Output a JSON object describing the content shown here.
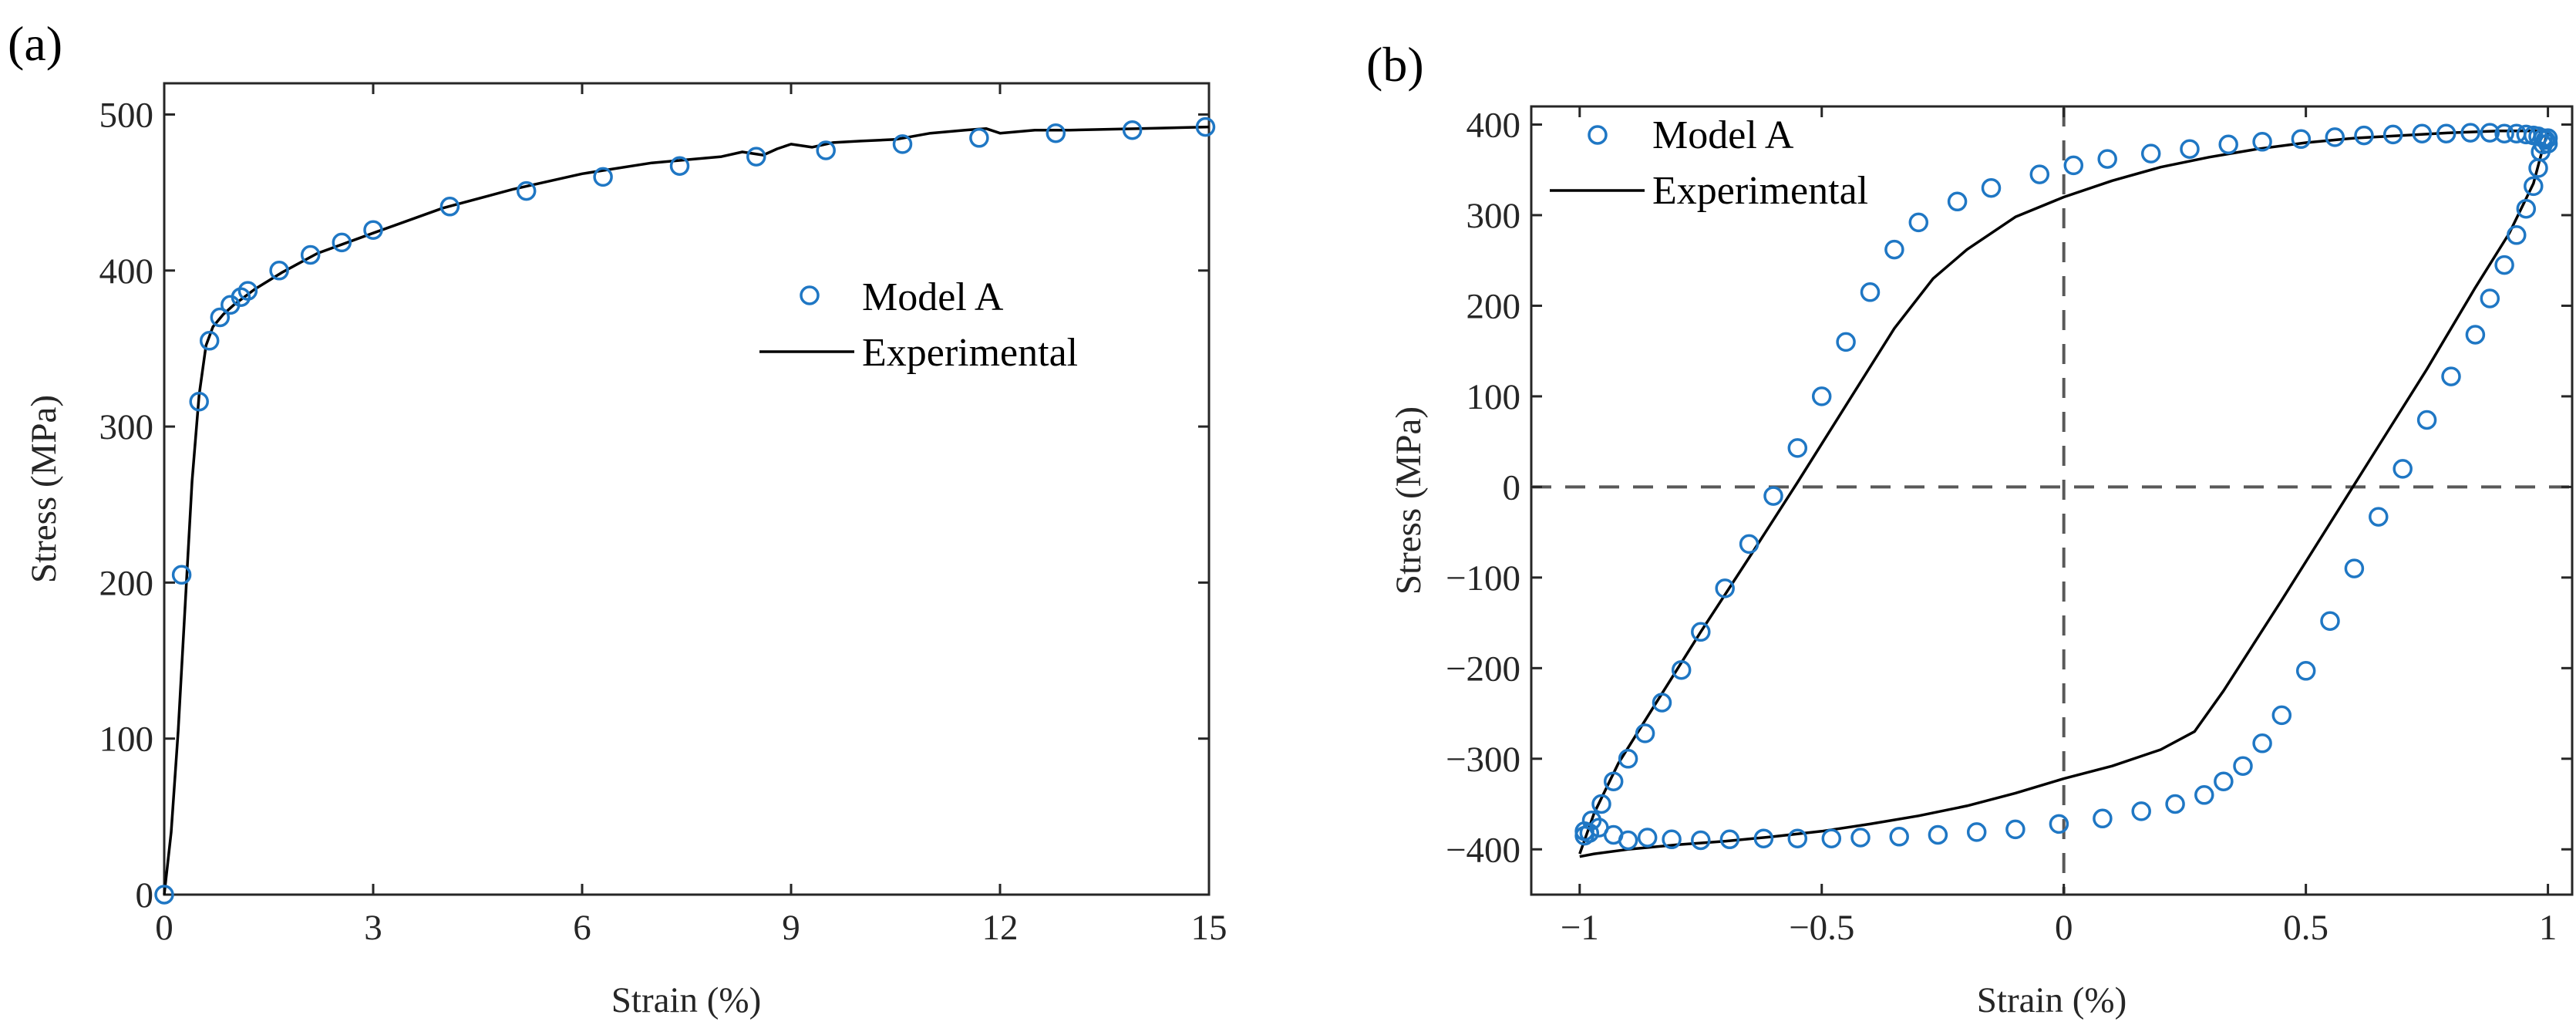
{
  "chart_data": [
    {
      "panel": "(a)",
      "type": "scatter",
      "xlabel": "Strain (%)",
      "ylabel": "Stress (MPa)",
      "xlim": [
        0,
        15
      ],
      "ylim": [
        0,
        520
      ],
      "xticks": [
        0,
        3,
        6,
        9,
        12,
        15
      ],
      "yticks": [
        0,
        100,
        200,
        300,
        400,
        500
      ],
      "legend_position": "center-right",
      "legend": [
        {
          "label": "Model A",
          "marker": "circle",
          "color": "#1f77c4"
        },
        {
          "label": "Experimental",
          "marker": "line",
          "color": "#000000"
        }
      ],
      "series": [
        {
          "name": "Model A",
          "style": "markers",
          "color": "#1f77c4",
          "x": [
            0,
            0.25,
            0.5,
            0.65,
            0.8,
            0.95,
            1.1,
            1.2,
            1.65,
            2.1,
            2.55,
            3.0,
            4.1,
            5.2,
            6.3,
            7.4,
            8.5,
            9.5,
            10.6,
            11.7,
            12.8,
            13.9,
            14.95
          ],
          "y": [
            0,
            205,
            316,
            355,
            370,
            378,
            383,
            387,
            400,
            410,
            418,
            426,
            441,
            451,
            460,
            467,
            473,
            477,
            481,
            485,
            488,
            490,
            492
          ]
        },
        {
          "name": "Experimental",
          "style": "line",
          "color": "#000000",
          "x": [
            0,
            0.1,
            0.2,
            0.3,
            0.4,
            0.5,
            0.6,
            0.7,
            0.85,
            1.0,
            1.3,
            1.7,
            2.2,
            3.0,
            4.0,
            5.0,
            6.0,
            7.0,
            8.0,
            8.3,
            8.6,
            8.8,
            9.0,
            9.3,
            9.6,
            10.0,
            10.5,
            11.0,
            11.5,
            11.8,
            12.0,
            12.5,
            13.0,
            14.0,
            15.0
          ],
          "y": [
            0,
            40,
            105,
            185,
            265,
            320,
            352,
            364,
            372,
            378,
            388,
            399,
            411,
            424,
            440,
            452,
            462,
            469,
            473,
            476,
            474,
            478,
            481,
            479,
            482,
            483,
            484,
            488,
            490,
            491,
            488,
            490,
            490,
            491,
            492
          ]
        }
      ]
    },
    {
      "panel": "(b)",
      "type": "scatter",
      "xlabel": "Strain (%)",
      "ylabel": "Stress (MPa)",
      "xlim": [
        -1.1,
        1.05
      ],
      "ylim": [
        -450,
        420
      ],
      "xticks": [
        -1,
        -0.5,
        0,
        0.5,
        1
      ],
      "xtick_labels": [
        "−1",
        "−0.5",
        "0",
        "0.5",
        "1"
      ],
      "yticks": [
        -400,
        -300,
        -200,
        -100,
        0,
        100,
        200,
        300,
        400
      ],
      "ytick_labels": [
        "−400",
        "−300",
        "−200",
        "−100",
        "0",
        "100",
        "200",
        "300",
        "400"
      ],
      "reference_lines": {
        "x": 0,
        "y": 0,
        "style": "dashed",
        "color": "#595959"
      },
      "legend_position": "top-left",
      "legend": [
        {
          "label": "Model A",
          "marker": "circle",
          "color": "#1f77c4"
        },
        {
          "label": "Experimental",
          "marker": "line",
          "color": "#000000"
        }
      ],
      "series": [
        {
          "name": "Model A",
          "style": "markers",
          "color": "#1f77c4",
          "x": [
            -0.99,
            -0.975,
            -0.955,
            -0.93,
            -0.9,
            -0.865,
            -0.83,
            -0.79,
            -0.75,
            -0.7,
            -0.65,
            -0.6,
            -0.55,
            -0.5,
            -0.45,
            -0.4,
            -0.35,
            -0.3,
            -0.22,
            -0.15,
            -0.05,
            0.02,
            0.09,
            0.18,
            0.26,
            0.34,
            0.41,
            0.49,
            0.56,
            0.62,
            0.68,
            0.74,
            0.79,
            0.84,
            0.88,
            0.91,
            0.935,
            0.955,
            0.97,
            0.98,
            0.99,
            0.995,
            1.0,
            1.0,
            0.99,
            0.985,
            0.98,
            0.97,
            0.955,
            0.935,
            0.91,
            0.88,
            0.85,
            0.8,
            0.75,
            0.7,
            0.65,
            0.6,
            0.55,
            0.5,
            0.45,
            0.41,
            0.37,
            0.33,
            0.29,
            0.23,
            0.16,
            0.08,
            -0.01,
            -0.1,
            -0.18,
            -0.26,
            -0.34,
            -0.42,
            -0.48,
            -0.55,
            -0.62,
            -0.69,
            -0.75,
            -0.81,
            -0.86,
            -0.9,
            -0.93,
            -0.96,
            -0.98,
            -0.99
          ],
          "y": [
            -380,
            -368,
            -350,
            -325,
            -300,
            -272,
            -238,
            -202,
            -160,
            -112,
            -63,
            -10,
            43,
            100,
            160,
            215,
            262,
            292,
            315,
            330,
            345,
            355,
            362,
            368,
            373,
            378,
            381,
            384,
            386,
            388,
            389,
            390,
            390,
            391,
            391,
            390,
            390,
            389,
            388,
            387,
            385,
            383,
            379,
            385,
            378,
            370,
            352,
            332,
            307,
            278,
            245,
            208,
            168,
            122,
            74,
            20,
            -33,
            -90,
            -148,
            -203,
            -252,
            -283,
            -308,
            -325,
            -340,
            -350,
            -358,
            -366,
            -372,
            -378,
            -381,
            -384,
            -386,
            -387,
            -388,
            -388,
            -388,
            -389,
            -390,
            -389,
            -387,
            -390,
            -384,
            -376,
            -382,
            -385
          ]
        },
        {
          "name": "Experimental",
          "style": "line",
          "color": "#000000",
          "x": [
            -1.0,
            -0.99,
            -0.97,
            -0.92,
            -0.85,
            -0.75,
            -0.65,
            -0.55,
            -0.45,
            -0.35,
            -0.27,
            -0.2,
            -0.1,
            0.0,
            0.1,
            0.2,
            0.3,
            0.4,
            0.5,
            0.6,
            0.7,
            0.8,
            0.9,
            0.97,
            1.0,
            0.99,
            0.97,
            0.92,
            0.85,
            0.75,
            0.65,
            0.55,
            0.45,
            0.33,
            0.27,
            0.2,
            0.1,
            0.0,
            -0.1,
            -0.2,
            -0.3,
            -0.4,
            -0.5,
            -0.6,
            -0.7,
            -0.8,
            -0.9,
            -0.97,
            -1.0
          ],
          "y": [
            -405,
            -390,
            -360,
            -305,
            -245,
            -160,
            -78,
            5,
            90,
            175,
            230,
            262,
            298,
            320,
            338,
            353,
            364,
            373,
            380,
            385,
            388,
            391,
            393,
            393,
            392,
            375,
            335,
            280,
            220,
            130,
            45,
            -40,
            -125,
            -225,
            -270,
            -290,
            -308,
            -322,
            -338,
            -352,
            -363,
            -372,
            -380,
            -386,
            -391,
            -395,
            -400,
            -405,
            -408
          ]
        }
      ]
    }
  ]
}
